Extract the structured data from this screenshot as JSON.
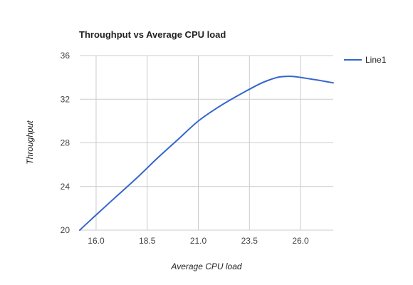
{
  "chart_data": {
    "type": "line",
    "title": "Throughput vs Average CPU load",
    "xlabel": "Average CPU load",
    "ylabel": "Throughput",
    "xlim": [
      15.2,
      27.6
    ],
    "ylim": [
      20,
      36
    ],
    "x_ticks": [
      16.0,
      18.5,
      21.0,
      23.5,
      26.0
    ],
    "x_tick_labels": [
      "16.0",
      "18.5",
      "21.0",
      "23.5",
      "26.0"
    ],
    "y_ticks": [
      20,
      24,
      28,
      32,
      36
    ],
    "y_tick_labels": [
      "20",
      "24",
      "28",
      "32",
      "36"
    ],
    "grid": true,
    "legend_position": "right",
    "series": [
      {
        "name": "Line1",
        "color": "#3366cc",
        "x": [
          15.2,
          16.0,
          17.0,
          18.0,
          19.0,
          20.0,
          21.0,
          22.0,
          23.0,
          24.0,
          24.6,
          25.0,
          25.5,
          26.0,
          26.5,
          27.0,
          27.6
        ],
        "y": [
          20.0,
          21.4,
          23.1,
          24.8,
          26.6,
          28.3,
          30.0,
          31.3,
          32.4,
          33.4,
          33.85,
          34.05,
          34.1,
          34.0,
          33.85,
          33.7,
          33.5
        ]
      }
    ]
  }
}
